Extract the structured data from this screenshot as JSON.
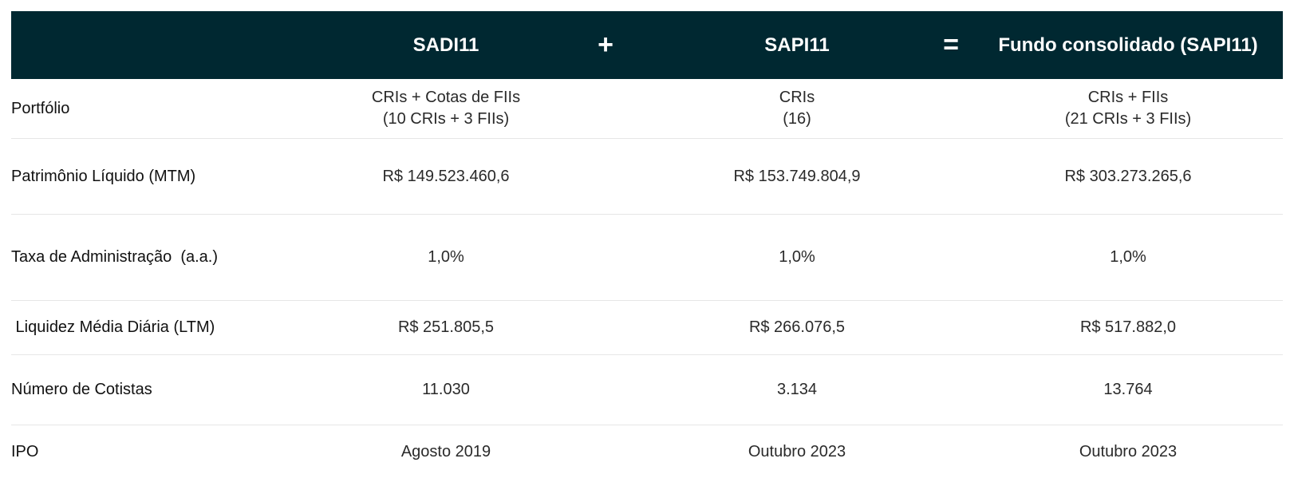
{
  "header": {
    "col1": "SADI11",
    "op1": "+",
    "col2": "SAPI11",
    "op2": "=",
    "col3": "Fundo consolidado (SAPI11)"
  },
  "rows": [
    {
      "label": "Portfólio",
      "col1": [
        "CRIs + Cotas de FIIs",
        "(10 CRIs + 3 FIIs)"
      ],
      "col2": [
        "CRIs",
        "(16)"
      ],
      "col3": [
        "CRIs + FIIs",
        "(21 CRIs + 3 FIIs)"
      ]
    },
    {
      "label": "Patrimônio Líquido (MTM)",
      "col1": "R$ 149.523.460,6",
      "col2": "R$ 153.749.804,9",
      "col3": "R$ 303.273.265,6"
    },
    {
      "label": "Taxa de Administração  (a.a.)",
      "col1": "1,0%",
      "col2": "1,0%",
      "col3": "1,0%"
    },
    {
      "label": " Liquidez Média Diária (LTM)",
      "col1": "R$ 251.805,5",
      "col2": "R$ 266.076,5",
      "col3": "R$ 517.882,0"
    },
    {
      "label": "Número de Cotistas",
      "col1": "11.030",
      "col2": "3.134",
      "col3": "13.764"
    },
    {
      "label": "IPO",
      "col1": "Agosto 2019",
      "col2": "Outubro 2023",
      "col3": "Outubro 2023"
    }
  ],
  "colors": {
    "header_bg": "#002831",
    "header_text": "#ffffff",
    "divider": "#e6e6e6"
  }
}
